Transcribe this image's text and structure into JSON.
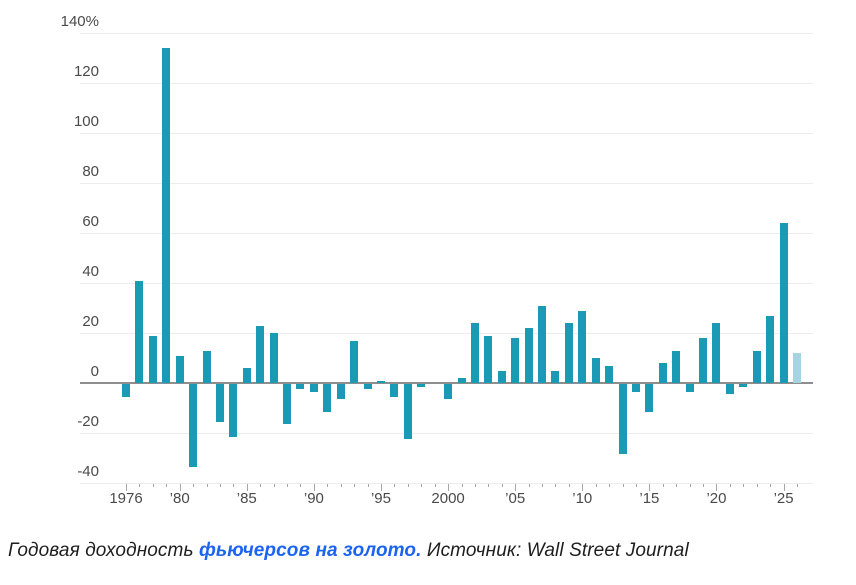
{
  "chart_data": {
    "type": "bar",
    "title": "Годовая доходность фьючерсов на золото",
    "source": "Wall Street Journal",
    "ylabel": "%",
    "ylim": [
      -40,
      140
    ],
    "grid": "horizontal",
    "x": [
      1976,
      1977,
      1978,
      1979,
      1980,
      1981,
      1982,
      1983,
      1984,
      1985,
      1986,
      1987,
      1988,
      1989,
      1990,
      1991,
      1992,
      1993,
      1994,
      1995,
      1996,
      1997,
      1998,
      1999,
      2000,
      2001,
      2002,
      2003,
      2004,
      2005,
      2006,
      2007,
      2008,
      2009,
      2010,
      2011,
      2012,
      2013,
      2014,
      2015,
      2016,
      2017,
      2018,
      2019,
      2020,
      2021,
      2022,
      2023,
      2024,
      2025,
      2026
    ],
    "values": [
      -5,
      41,
      19,
      134,
      11,
      -33,
      13,
      -15,
      -21,
      6,
      23,
      20,
      -16,
      -2,
      -3,
      -11,
      -6,
      17,
      -2,
      1,
      -5,
      -22,
      -1,
      0,
      -6,
      2,
      24,
      19,
      5,
      18,
      22,
      31,
      5,
      24,
      29,
      10,
      7,
      -28,
      -3,
      -11,
      8,
      13,
      -3,
      18,
      24,
      -4,
      -1,
      13,
      27,
      64,
      12
    ],
    "last_bar_partial_year": 2026,
    "y_tick_labels": [
      {
        "text": "140%",
        "value": 140
      },
      {
        "text": "120",
        "value": 120
      },
      {
        "text": "100",
        "value": 100
      },
      {
        "text": "80",
        "value": 80
      },
      {
        "text": "60",
        "value": 60
      },
      {
        "text": "40",
        "value": 40
      },
      {
        "text": "20",
        "value": 20
      },
      {
        "text": "0",
        "value": 0
      },
      {
        "text": "-20",
        "value": -20
      },
      {
        "text": "-40",
        "value": -40
      }
    ],
    "x_tick_labels": [
      {
        "text": "1976",
        "year": 1976
      },
      {
        "text": "’80",
        "year": 1980
      },
      {
        "text": "’85",
        "year": 1985
      },
      {
        "text": "’90",
        "year": 1990
      },
      {
        "text": "’95",
        "year": 1995
      },
      {
        "text": "2000",
        "year": 2000
      },
      {
        "text": "’05",
        "year": 2005
      },
      {
        "text": "’10",
        "year": 2010
      },
      {
        "text": "’15",
        "year": 2015
      },
      {
        "text": "’20",
        "year": 2020
      },
      {
        "text": "’25",
        "year": 2025
      }
    ]
  },
  "caption": {
    "prefix": "Годовая доходность ",
    "link": "фьючерсов на золото.",
    "suffix": " Источник: Wall Street Journal"
  },
  "colors": {
    "bar": "#1b9ab5",
    "bar_partial": "#a6d4e2",
    "grid": "#ededed",
    "zero_line": "#8e8e8e",
    "axis_text": "#4a4a4a",
    "tick": "#a8a8a8",
    "caption_text": "#1e1e1e",
    "caption_link": "#1b64f0"
  }
}
